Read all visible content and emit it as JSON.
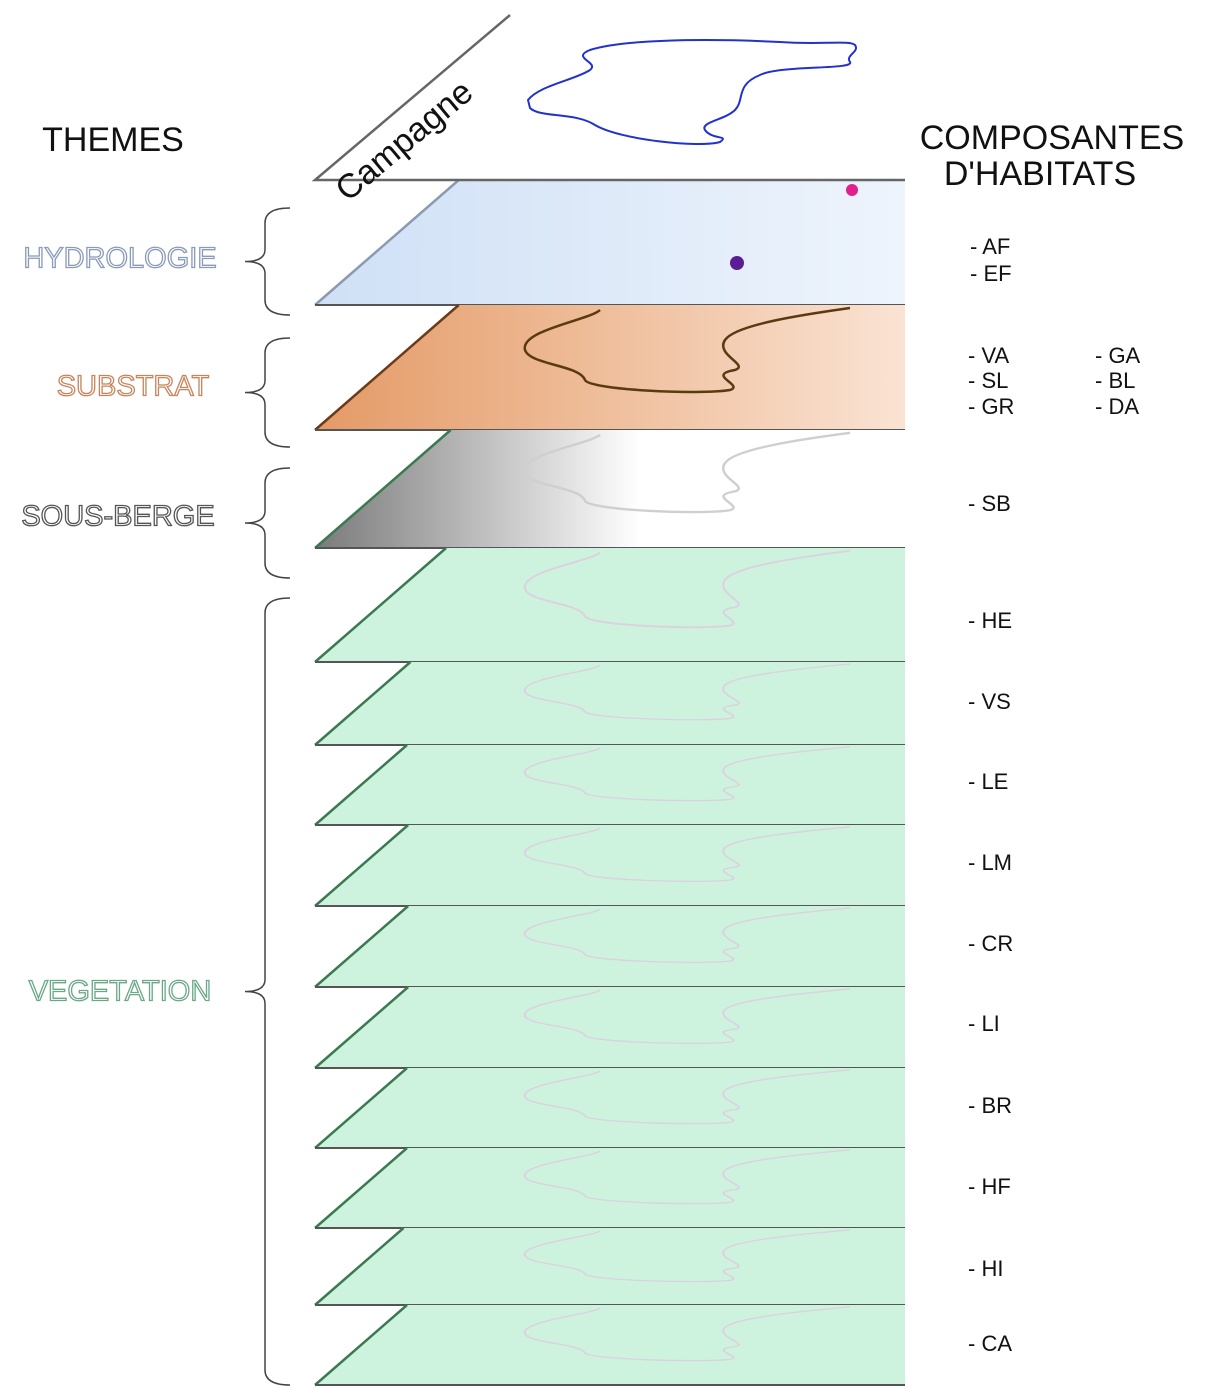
{
  "header": {
    "left_title": "THEMES",
    "right_title": [
      "COMPOSANTES",
      "D'HABITATS"
    ],
    "top_layer": "Campagne"
  },
  "themes": [
    {
      "label": "HYDROLOGIE",
      "components": [
        "- AF",
        "- EF"
      ]
    },
    {
      "label": "SUBSTRAT",
      "components": [
        "- VA",
        "- SL",
        "- GR",
        "- GA",
        "- BL",
        "- DA"
      ]
    },
    {
      "label": "SOUS-BERGE",
      "components": [
        "- SB"
      ]
    },
    {
      "label": "VEGETATION",
      "components": [
        "- HE",
        "- VS",
        "- LE",
        "- LM",
        "- CR",
        "- LI",
        "- BR",
        "- HF",
        "- HI",
        "- CA"
      ]
    }
  ]
}
